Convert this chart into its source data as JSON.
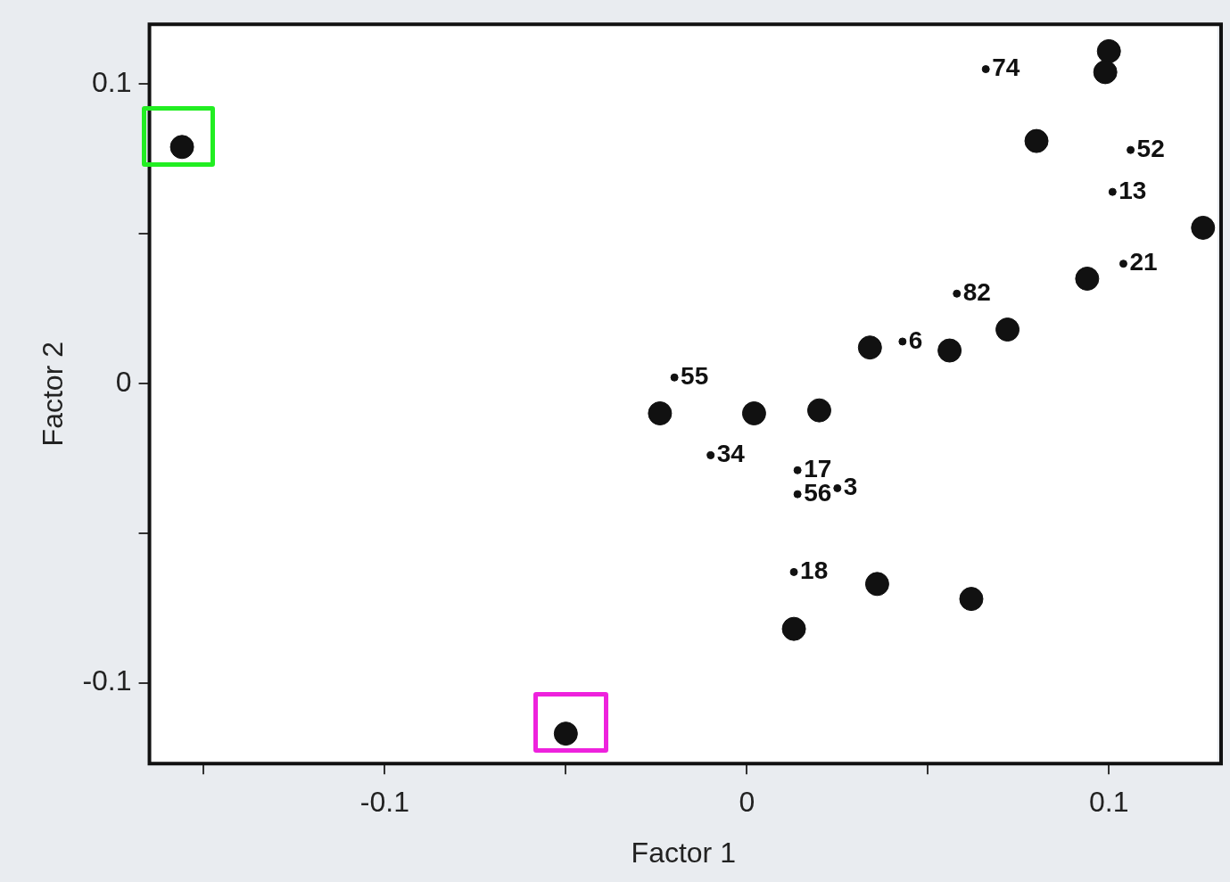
{
  "chart_data": {
    "type": "scatter",
    "xlabel": "Factor 1",
    "ylabel": "Factor 2",
    "xlim": [
      -0.165,
      0.13
    ],
    "ylim": [
      -0.127,
      0.12
    ],
    "xticks": [
      {
        "value": -0.15,
        "label": null
      },
      -0.1,
      {
        "value": -0.05,
        "label": null
      },
      0,
      {
        "value": 0.05,
        "label": null
      },
      0.1
    ],
    "yticks": [
      -0.1,
      {
        "value": -0.05,
        "label": null
      },
      0,
      {
        "value": 0.05,
        "label": null
      },
      0.1
    ],
    "grid": false,
    "legend": false,
    "marker": "circle",
    "series": [
      {
        "name": "74",
        "color": "#111111",
        "x": [
          0.066
        ],
        "values": [
          0.105
        ]
      },
      {
        "name": "52",
        "color": "#111111",
        "x": [
          0.106
        ],
        "values": [
          0.078
        ]
      },
      {
        "name": "13",
        "color": "#111111",
        "x": [
          0.101
        ],
        "values": [
          0.064
        ]
      },
      {
        "name": "21",
        "color": "#111111",
        "x": [
          0.104
        ],
        "values": [
          0.04
        ]
      },
      {
        "name": "82",
        "color": "#111111",
        "x": [
          0.058
        ],
        "values": [
          0.03
        ]
      },
      {
        "name": "6",
        "color": "#111111",
        "x": [
          0.043
        ],
        "values": [
          0.014
        ]
      },
      {
        "name": "55",
        "color": "#111111",
        "x": [
          -0.02
        ],
        "values": [
          0.002
        ]
      },
      {
        "name": "34",
        "color": "#111111",
        "x": [
          -0.01
        ],
        "values": [
          -0.024
        ]
      },
      {
        "name": "17",
        "color": "#111111",
        "x": [
          0.014
        ],
        "values": [
          -0.029
        ]
      },
      {
        "name": "56",
        "color": "#111111",
        "x": [
          0.014
        ],
        "values": [
          -0.037
        ]
      },
      {
        "name": "3",
        "color": "#111111",
        "x": [
          0.025
        ],
        "values": [
          -0.035
        ]
      },
      {
        "name": "18",
        "color": "#111111",
        "x": [
          0.013
        ],
        "values": [
          -0.063
        ]
      },
      {
        "marker": "circle",
        "color": "#111111",
        "x": [
          0.1,
          0.099,
          0.08,
          0.126,
          0.094,
          0.034,
          0.056,
          0.072,
          -0.024,
          0.002,
          0.02,
          0.036,
          0.062,
          0.013,
          -0.156,
          -0.05
        ],
        "values": [
          0.111,
          0.104,
          0.081,
          0.052,
          0.035,
          0.012,
          0.011,
          0.018,
          -0.01,
          -0.01,
          -0.009,
          -0.067,
          -0.072,
          -0.082,
          0.079,
          -0.117
        ]
      }
    ]
  }
}
